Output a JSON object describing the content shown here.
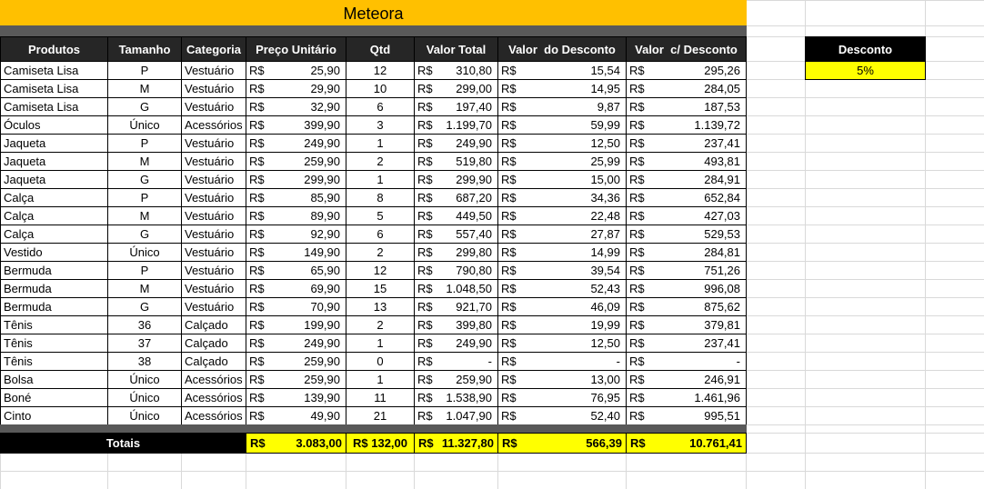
{
  "title": "Meteora",
  "currency": "R$",
  "headers": [
    "Produtos",
    "Tamanho",
    "Categoria",
    "Preço Unitário",
    "Qtd",
    "Valor Total",
    "Valor  do Desconto",
    "Valor  c/ Desconto"
  ],
  "rows": [
    [
      "Camiseta Lisa",
      "P",
      "Vestuário",
      "25,90",
      12,
      "310,80",
      "15,54",
      "295,26"
    ],
    [
      "Camiseta Lisa",
      "M",
      "Vestuário",
      "29,90",
      10,
      "299,00",
      "14,95",
      "284,05"
    ],
    [
      "Camiseta Lisa",
      "G",
      "Vestuário",
      "32,90",
      6,
      "197,40",
      "9,87",
      "187,53"
    ],
    [
      "Óculos",
      "Único",
      "Acessórios",
      "399,90",
      3,
      "1.199,70",
      "59,99",
      "1.139,72"
    ],
    [
      "Jaqueta",
      "P",
      "Vestuário",
      "249,90",
      1,
      "249,90",
      "12,50",
      "237,41"
    ],
    [
      "Jaqueta",
      "M",
      "Vestuário",
      "259,90",
      2,
      "519,80",
      "25,99",
      "493,81"
    ],
    [
      "Jaqueta",
      "G",
      "Vestuário",
      "299,90",
      1,
      "299,90",
      "15,00",
      "284,91"
    ],
    [
      "Calça",
      "P",
      "Vestuário",
      "85,90",
      8,
      "687,20",
      "34,36",
      "652,84"
    ],
    [
      "Calça",
      "M",
      "Vestuário",
      "89,90",
      5,
      "449,50",
      "22,48",
      "427,03"
    ],
    [
      "Calça",
      "G",
      "Vestuário",
      "92,90",
      6,
      "557,40",
      "27,87",
      "529,53"
    ],
    [
      "Vestido",
      "Único",
      "Vestuário",
      "149,90",
      2,
      "299,80",
      "14,99",
      "284,81"
    ],
    [
      "Bermuda",
      "P",
      "Vestuário",
      "65,90",
      12,
      "790,80",
      "39,54",
      "751,26"
    ],
    [
      "Bermuda",
      "M",
      "Vestuário",
      "69,90",
      15,
      "1.048,50",
      "52,43",
      "996,08"
    ],
    [
      "Bermuda",
      "G",
      "Vestuário",
      "70,90",
      13,
      "921,70",
      "46,09",
      "875,62"
    ],
    [
      "Tênis",
      "36",
      "Calçado",
      "199,90",
      2,
      "399,80",
      "19,99",
      "379,81"
    ],
    [
      "Tênis",
      "37",
      "Calçado",
      "249,90",
      1,
      "249,90",
      "12,50",
      "237,41"
    ],
    [
      "Tênis",
      "38",
      "Calçado",
      "259,90",
      0,
      "-",
      "-",
      "-"
    ],
    [
      "Bolsa",
      "Único",
      "Acessórios",
      "259,90",
      1,
      "259,90",
      "13,00",
      "246,91"
    ],
    [
      "Boné",
      "Único",
      "Acessórios",
      "139,90",
      11,
      "1.538,90",
      "76,95",
      "1.461,96"
    ],
    [
      "Cinto",
      "Único",
      "Acessórios",
      "49,90",
      21,
      "1.047,90",
      "52,40",
      "995,51"
    ]
  ],
  "totals": {
    "label": "Totais",
    "preco": "3.083,00",
    "qtd": "R$ 132,00",
    "total": "11.327,80",
    "desconto": "566,39",
    "com_desconto": "10.761,41"
  },
  "discount": {
    "header": "Desconto",
    "value": "5%"
  }
}
